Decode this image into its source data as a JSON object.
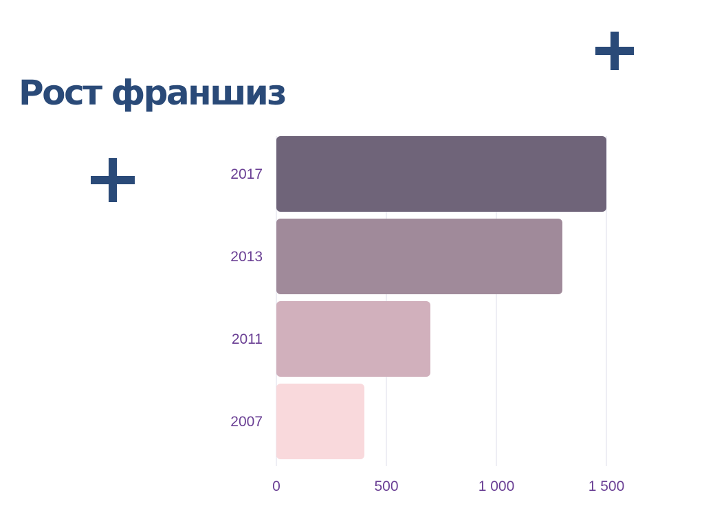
{
  "slide": {
    "title": "Рост франшиз",
    "decor_icons": [
      "plus-icon",
      "plus-icon"
    ],
    "title_color": "#2a4a78"
  },
  "chart_data": {
    "type": "bar",
    "orientation": "horizontal",
    "categories": [
      "2017",
      "2013",
      "2011",
      "2007"
    ],
    "values": [
      1500,
      1300,
      700,
      400
    ],
    "colors": [
      "#6f6479",
      "#a08a9a",
      "#d1b0bc",
      "#f9d9dc"
    ],
    "xlim": [
      0,
      1500
    ],
    "xticks": [
      0,
      500,
      1000,
      1500
    ],
    "xtick_labels": [
      "0",
      "500",
      "1 000",
      "1 500"
    ],
    "grid": "vertical",
    "legend": "none",
    "label_color": "#6a3f94"
  }
}
